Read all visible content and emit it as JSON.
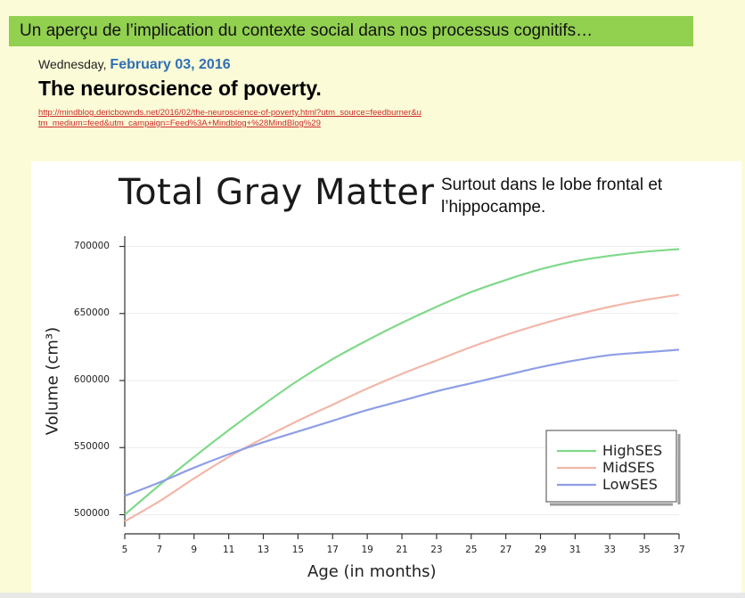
{
  "page": {
    "banner": "Un aperçu de l’implication du contexte social dans nos processus cognitifs…",
    "date_prefix": "Wednesday, ",
    "date_main": "February 03, 2016",
    "post_title": "The neuroscience of poverty.",
    "post_link": "http://mindblog.dericbownds.net/2016/02/the-neuroscience-of-poverty.html?utm_source=feedburner&utm_medium=feed&utm_campaign=Feed%3A+Mindblog+%28MindBlog%29",
    "annotation": "Surtout dans le lobe frontal et l’hippocampe."
  },
  "colors": {
    "HighSES": "#7fd98a",
    "MidSES": "#f2b7a9",
    "LowSES": "#8e9ee6"
  },
  "chart_data": {
    "type": "line",
    "title": "Total Gray Matter",
    "xlabel": "Age (in months)",
    "ylabel": "Volume (cm³)",
    "x_ticks": [
      5,
      7,
      9,
      11,
      13,
      15,
      17,
      19,
      21,
      23,
      25,
      27,
      29,
      31,
      33,
      35,
      37
    ],
    "y_ticks": [
      500000,
      550000,
      600000,
      650000,
      700000
    ],
    "y_tick_labels": [
      "500000",
      "550000",
      "600000",
      "650000",
      "700000"
    ],
    "xlim": [
      5,
      37
    ],
    "ylim": [
      495000,
      705000
    ],
    "legend_position": "bottom-right",
    "grid": true,
    "series": [
      {
        "name": "HighSES",
        "x": [
          5,
          7,
          9,
          11,
          13,
          15,
          17,
          19,
          21,
          23,
          25,
          27,
          29,
          31,
          33,
          35,
          37
        ],
        "values": [
          500000,
          522000,
          543000,
          563000,
          582000,
          600000,
          616000,
          630000,
          643000,
          655000,
          666000,
          675000,
          683000,
          689000,
          693000,
          696000,
          698000
        ]
      },
      {
        "name": "MidSES",
        "x": [
          5,
          7,
          9,
          11,
          13,
          15,
          17,
          19,
          21,
          23,
          25,
          27,
          29,
          31,
          33,
          35,
          37
        ],
        "values": [
          495000,
          510000,
          527000,
          543000,
          557000,
          570000,
          582000,
          594000,
          605000,
          615000,
          625000,
          634000,
          642000,
          649000,
          655000,
          660000,
          664000
        ]
      },
      {
        "name": "LowSES",
        "x": [
          5,
          7,
          9,
          11,
          13,
          15,
          17,
          19,
          21,
          23,
          25,
          27,
          29,
          31,
          33,
          35,
          37
        ],
        "values": [
          514000,
          524000,
          535000,
          545000,
          554000,
          562000,
          570000,
          578000,
          585000,
          592000,
          598000,
          604000,
          610000,
          615000,
          619000,
          621000,
          623000
        ]
      }
    ]
  }
}
